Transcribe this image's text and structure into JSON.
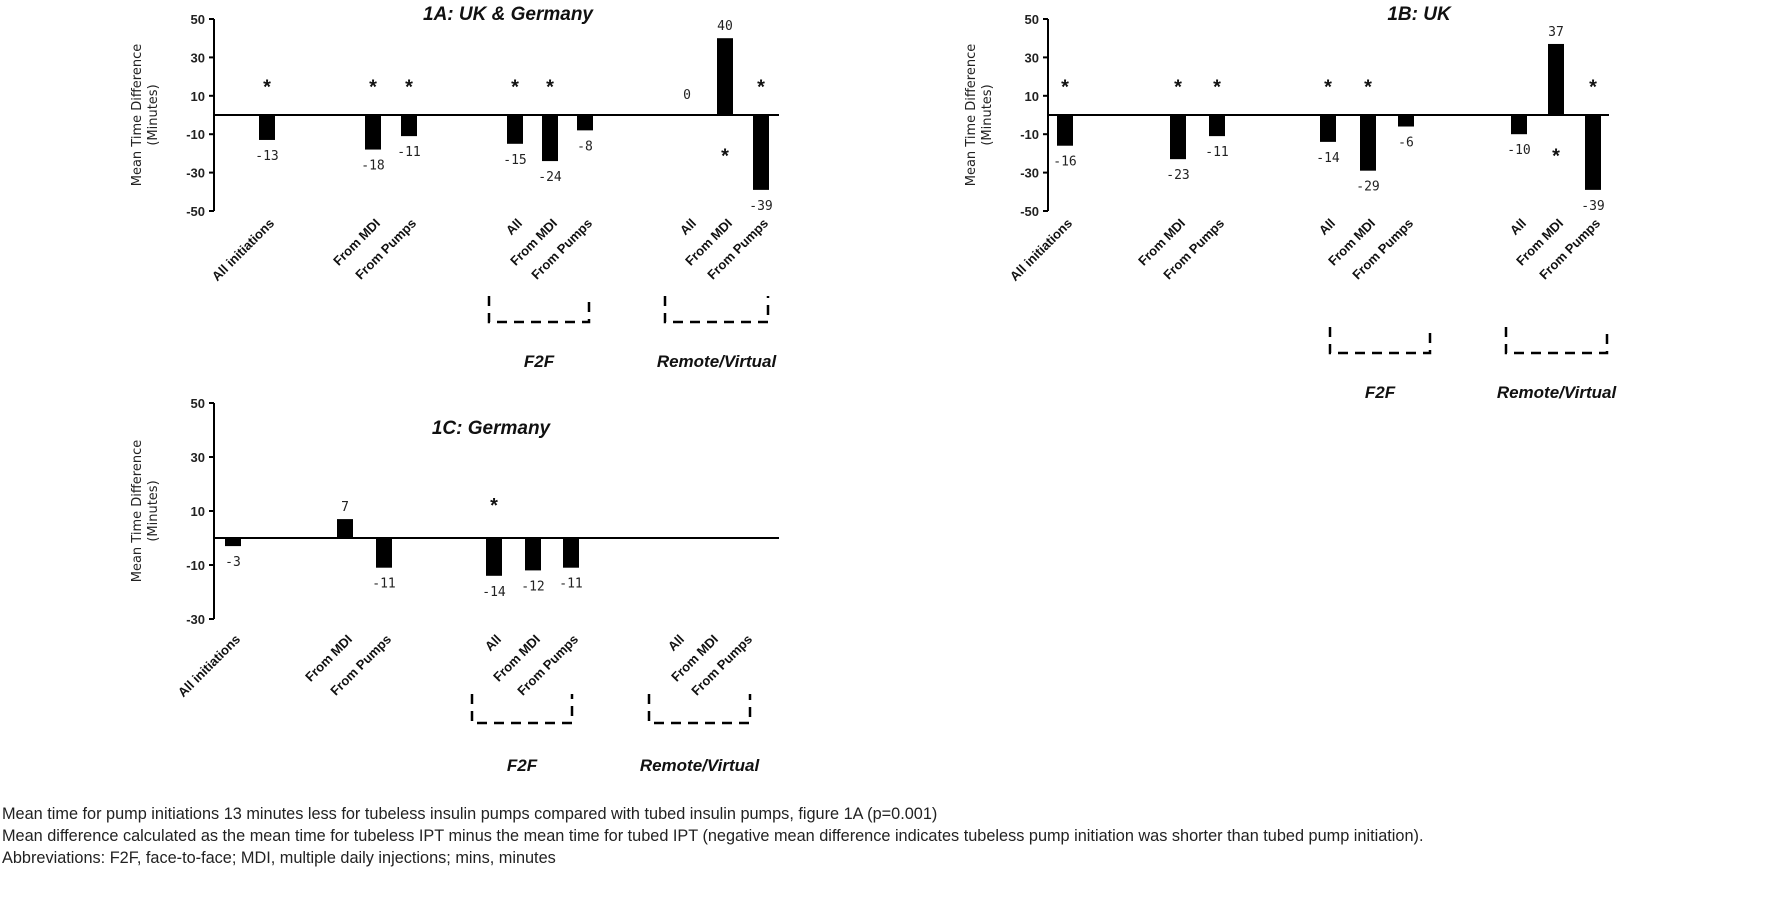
{
  "chart_data": [
    {
      "type": "bar",
      "title": "1A: UK & Germany",
      "ylabel": [
        "Mean Time Difference",
        "(Minutes)"
      ],
      "ylim": [
        -50,
        50
      ],
      "yticks": [
        "50",
        "30",
        "10",
        "-10",
        "-30",
        "-50"
      ],
      "categories": [
        "All initiations",
        "From MDI",
        "From Pumps",
        "All",
        "From MDI",
        "From Pumps",
        "All",
        "From MDI",
        "From Pumps"
      ],
      "values": [
        -13,
        -18,
        -11,
        -15,
        -24,
        -8,
        0,
        40,
        -39
      ],
      "value_labels": [
        "-13",
        "-18",
        "-11",
        "-15",
        "-24",
        "-8",
        "0",
        "40",
        "-39"
      ],
      "significance": [
        "above",
        "above",
        "above",
        "above",
        "above",
        null,
        null,
        "below",
        "above"
      ],
      "groups": [
        {
          "label": "F2F",
          "categories": [
            3,
            4,
            5
          ]
        },
        {
          "label": "Remote/Virtual",
          "categories": [
            6,
            7,
            8
          ]
        }
      ]
    },
    {
      "type": "bar",
      "title": "1B: UK",
      "ylabel": [
        "Mean Time Difference",
        "(Minutes)"
      ],
      "ylim": [
        -50,
        50
      ],
      "yticks": [
        "50",
        "30",
        "10",
        "-10",
        "-30",
        "-50"
      ],
      "categories": [
        "All initiations",
        "From MDI",
        "From Pumps",
        "All",
        "From MDI",
        "From Pumps",
        "All",
        "From MDI",
        "From Pumps"
      ],
      "values": [
        -16,
        -23,
        -11,
        -14,
        -29,
        -6,
        -10,
        37,
        -39
      ],
      "value_labels": [
        "-16",
        "-23",
        "-11",
        "-14",
        "-29",
        "-6",
        "-10",
        "37",
        "-39"
      ],
      "significance": [
        "above",
        "above",
        "above",
        "above",
        "above",
        null,
        null,
        "below",
        "above"
      ],
      "groups": [
        {
          "label": "F2F",
          "categories": [
            3,
            4,
            5
          ]
        },
        {
          "label": "Remote/Virtual",
          "categories": [
            6,
            7,
            8
          ]
        }
      ]
    },
    {
      "type": "bar",
      "title": "1C: Germany",
      "ylabel": [
        "Mean Time Difference",
        "(Minutes)"
      ],
      "ylim": [
        -30,
        50
      ],
      "yticks": [
        "50",
        "30",
        "10",
        "-10",
        "-30"
      ],
      "categories": [
        "All initiations",
        "From MDI",
        "From Pumps",
        "All",
        "From MDI",
        "From Pumps",
        "All",
        "From MDI",
        "From Pumps"
      ],
      "values": [
        -3,
        7,
        -11,
        -14,
        -12,
        -11,
        null,
        null,
        null
      ],
      "value_labels": [
        "-3",
        "7",
        "-11",
        "-14",
        "-12",
        "-11",
        null,
        null,
        null
      ],
      "significance": [
        null,
        null,
        null,
        "above",
        null,
        null,
        null,
        null,
        null
      ],
      "groups": [
        {
          "label": "F2F",
          "categories": [
            3,
            4,
            5
          ]
        },
        {
          "label": "Remote/Virtual",
          "categories": [
            6,
            7,
            8
          ]
        }
      ]
    }
  ],
  "significance_marker": "*",
  "caption": [
    "Mean time for pump initiations 13 minutes less for tubeless insulin pumps compared with tubed insulin pumps, figure 1A (p=0.001)",
    "Mean difference calculated as the mean time for tubeless IPT minus the mean time for tubed IPT (negative mean difference indicates tubeless pump initiation was shorter than tubed pump initiation).",
    "Abbreviations: F2F, face-to-face; MDI, multiple daily injections; mins, minutes"
  ]
}
